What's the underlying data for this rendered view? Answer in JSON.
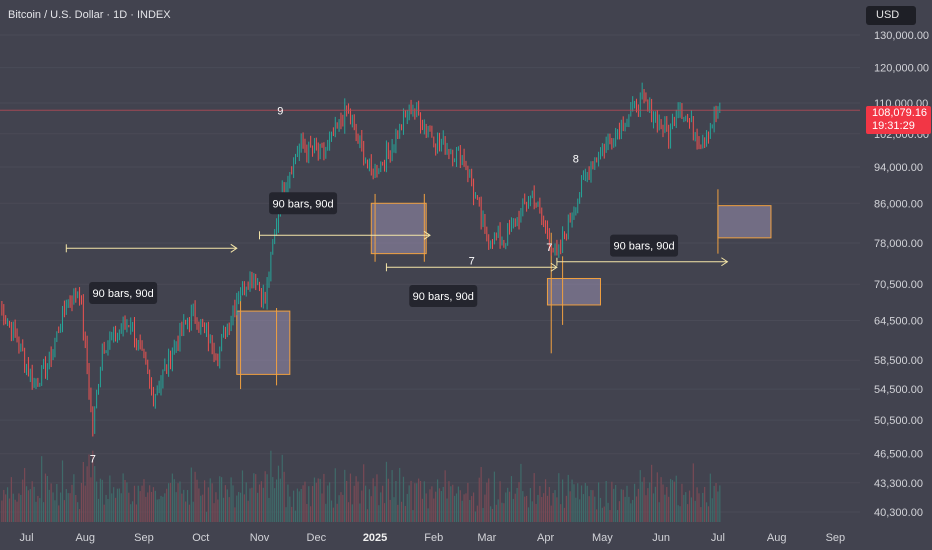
{
  "header": {
    "title": "Bitcoin / U.S. Dollar · 1D · INDEX",
    "currency": "USD"
  },
  "price_tag": {
    "price": "108,079.16",
    "countdown": "19:31:29",
    "color": "#f23645"
  },
  "colors": {
    "background": "#42434f",
    "up_candle": "#26a69a",
    "down_candle": "#ef5350",
    "projection": "#f5e6a8",
    "box_border": "#f0a040",
    "box_fill": "#9a8fb0"
  },
  "chart_data": {
    "type": "line",
    "title": "Bitcoin / U.S. Dollar · 1D · INDEX",
    "y_scale": "log",
    "ylim": [
      38500,
      145000
    ],
    "y_ticks": [
      "130,000.00",
      "120,000.00",
      "110,000.00",
      "102,000.00",
      "94,000.00",
      "86,000.00",
      "78,000.00",
      "70,500.00",
      "64,500.00",
      "58,500.00",
      "54,500.00",
      "50,500.00",
      "46,500.00",
      "43,300.00",
      "40,300.00"
    ],
    "x_ticks": [
      "Jul",
      "Aug",
      "Sep",
      "Oct",
      "Nov",
      "Dec",
      "2025",
      "Feb",
      "Mar",
      "Apr",
      "May",
      "Jun",
      "Jul",
      "Aug",
      "Sep"
    ],
    "x_range": [
      "2024-06-17",
      "2025-09-14"
    ],
    "series": [
      {
        "price_path": [
          [
            "2024-06-17",
            66500
          ],
          [
            "2024-06-25",
            62500
          ],
          [
            "2024-07-05",
            55000
          ],
          [
            "2024-07-12",
            57500
          ],
          [
            "2024-07-22",
            67500
          ],
          [
            "2024-07-29",
            69500
          ],
          [
            "2024-08-05",
            49500
          ],
          [
            "2024-08-10",
            60500
          ],
          [
            "2024-08-25",
            64500
          ],
          [
            "2024-09-06",
            53500
          ],
          [
            "2024-09-20",
            62500
          ],
          [
            "2024-09-27",
            65500
          ],
          [
            "2024-10-10",
            59500
          ],
          [
            "2024-10-20",
            68500
          ],
          [
            "2024-10-29",
            72500
          ],
          [
            "2024-11-04",
            67500
          ],
          [
            "2024-11-12",
            88000
          ],
          [
            "2024-11-22",
            99000
          ],
          [
            "2024-12-05",
            97000
          ],
          [
            "2024-12-17",
            108000
          ],
          [
            "2024-12-30",
            92500
          ],
          [
            "2025-01-07",
            96500
          ],
          [
            "2025-01-20",
            109000
          ],
          [
            "2025-02-03",
            100000
          ],
          [
            "2025-02-17",
            96000
          ],
          [
            "2025-02-28",
            80000
          ],
          [
            "2025-03-10",
            78500
          ],
          [
            "2025-03-25",
            88000
          ],
          [
            "2025-04-07",
            75000
          ],
          [
            "2025-04-15",
            84500
          ],
          [
            "2025-04-25",
            94500
          ],
          [
            "2025-05-10",
            104000
          ],
          [
            "2025-05-22",
            111000
          ],
          [
            "2025-06-05",
            101500
          ],
          [
            "2025-06-10",
            110000
          ],
          [
            "2025-06-22",
            100000
          ],
          [
            "2025-06-30",
            107000
          ],
          [
            "2025-07-02",
            108079
          ]
        ]
      }
    ],
    "projections": [
      {
        "from": "2024-07-22",
        "to": "2024-10-20",
        "price": 77000,
        "label": "90 bars, 90d"
      },
      {
        "from": "2024-11-01",
        "to": "2025-01-30",
        "price": 79500,
        "label": "90 bars, 90d"
      },
      {
        "from": "2025-01-07",
        "to": "2025-04-07",
        "price": 73500,
        "label": "7"
      },
      {
        "from": "2025-04-07",
        "to": "2025-07-06",
        "price": 74500,
        "label": "90 bars, 90d"
      }
    ],
    "time_boxes": [
      {
        "from": "2024-10-20",
        "to": "2024-11-17",
        "low": 56500,
        "high": 66000
      },
      {
        "from": "2024-12-30",
        "to": "2025-01-28",
        "low": 76000,
        "high": 86000
      },
      {
        "from": "2025-04-02",
        "to": "2025-04-30",
        "low": 67000,
        "high": 71500
      },
      {
        "from": "2025-07-01",
        "to": "2025-07-29",
        "low": 79000,
        "high": 85500
      }
    ],
    "wave_labels": [
      {
        "date": "2024-08-05",
        "price": 45500,
        "text": "7"
      },
      {
        "date": "2024-11-12",
        "price": 107000,
        "text": "9"
      },
      {
        "date": "2025-04-03",
        "price": 76500,
        "text": "7"
      },
      {
        "date": "2025-04-17",
        "price": 95000,
        "text": "8"
      }
    ],
    "annotations": [
      {
        "date": "2024-08-21",
        "price": 69000,
        "text": "90 bars, 90d"
      },
      {
        "date": "2024-11-24",
        "price": 86000,
        "text": "90 bars, 90d"
      },
      {
        "date": "2025-02-06",
        "price": 68500,
        "text": "90 bars, 90d"
      },
      {
        "date": "2025-05-23",
        "price": 77500,
        "text": "90 bars, 90d"
      }
    ]
  }
}
